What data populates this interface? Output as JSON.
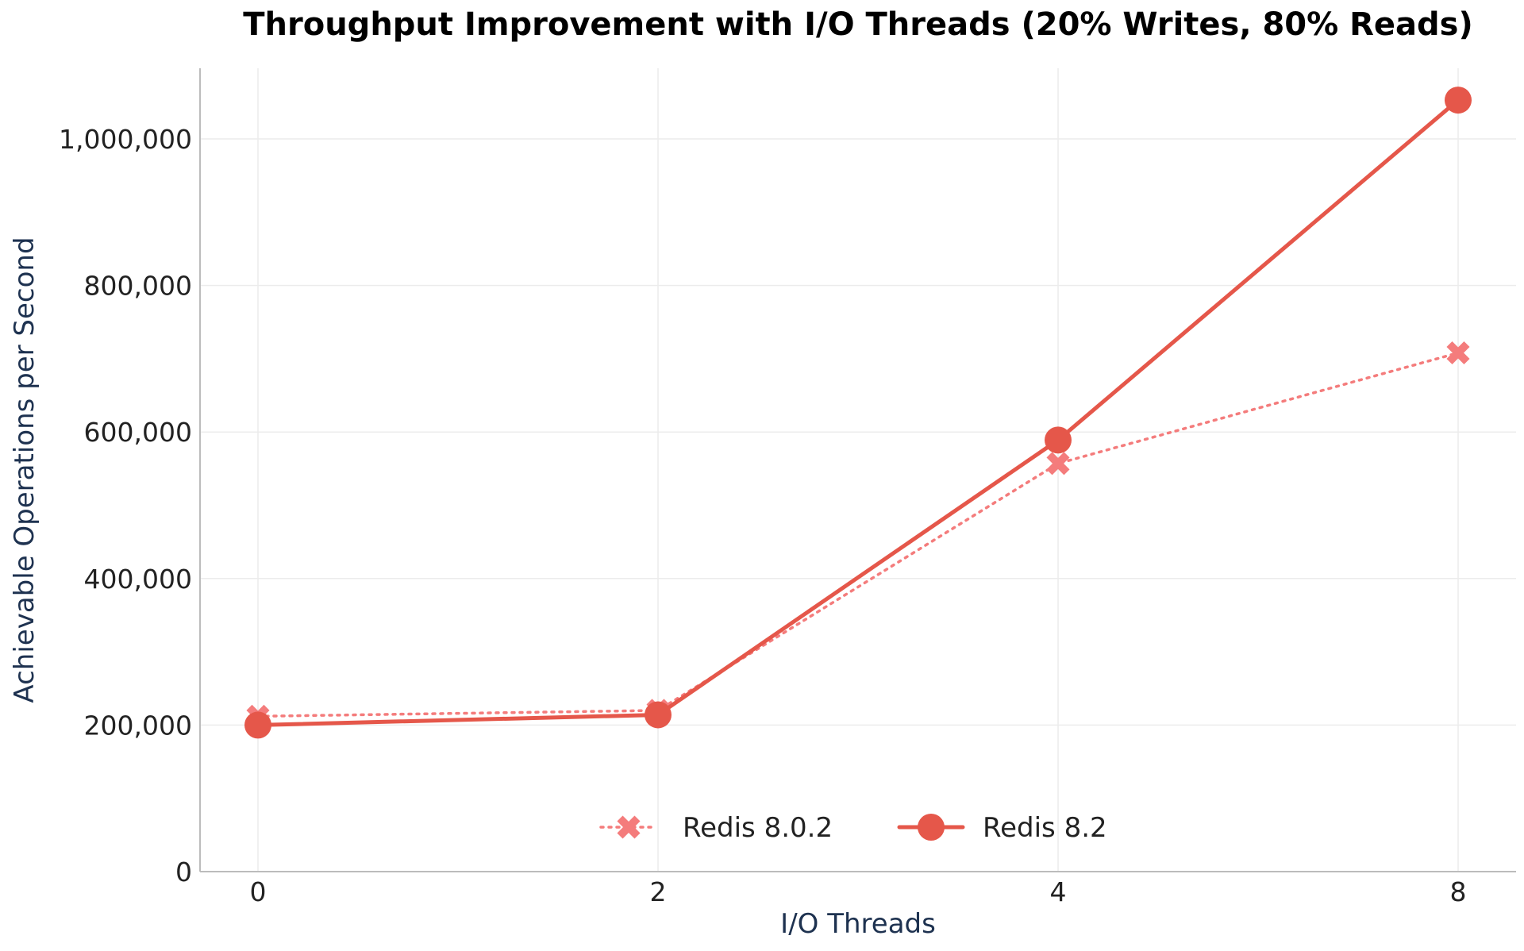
{
  "chart_data": {
    "type": "line",
    "title": "Throughput Improvement with I/O Threads (20% Writes, 80% Reads)",
    "xlabel": "I/O Threads",
    "ylabel": "Achievable Operations per Second",
    "categories": [
      "0",
      "2",
      "4",
      "8"
    ],
    "ylim": [
      0,
      1100000
    ],
    "yticks": [
      0,
      200000,
      400000,
      600000,
      800000,
      1000000
    ],
    "ytick_labels": [
      "0",
      "200,000",
      "400,000",
      "600,000",
      "800,000",
      "1,000,000"
    ],
    "grid": true,
    "legend_position": "bottom-center",
    "series": [
      {
        "name": "Redis 8.0.2",
        "values": [
          212000,
          220000,
          557000,
          708000
        ],
        "color": "#f47c7c",
        "line_style": "dotted",
        "marker": "x"
      },
      {
        "name": "Redis 8.2",
        "values": [
          200000,
          214000,
          589000,
          1053000
        ],
        "color": "#e5574a",
        "line_style": "solid",
        "marker": "circle"
      }
    ]
  }
}
